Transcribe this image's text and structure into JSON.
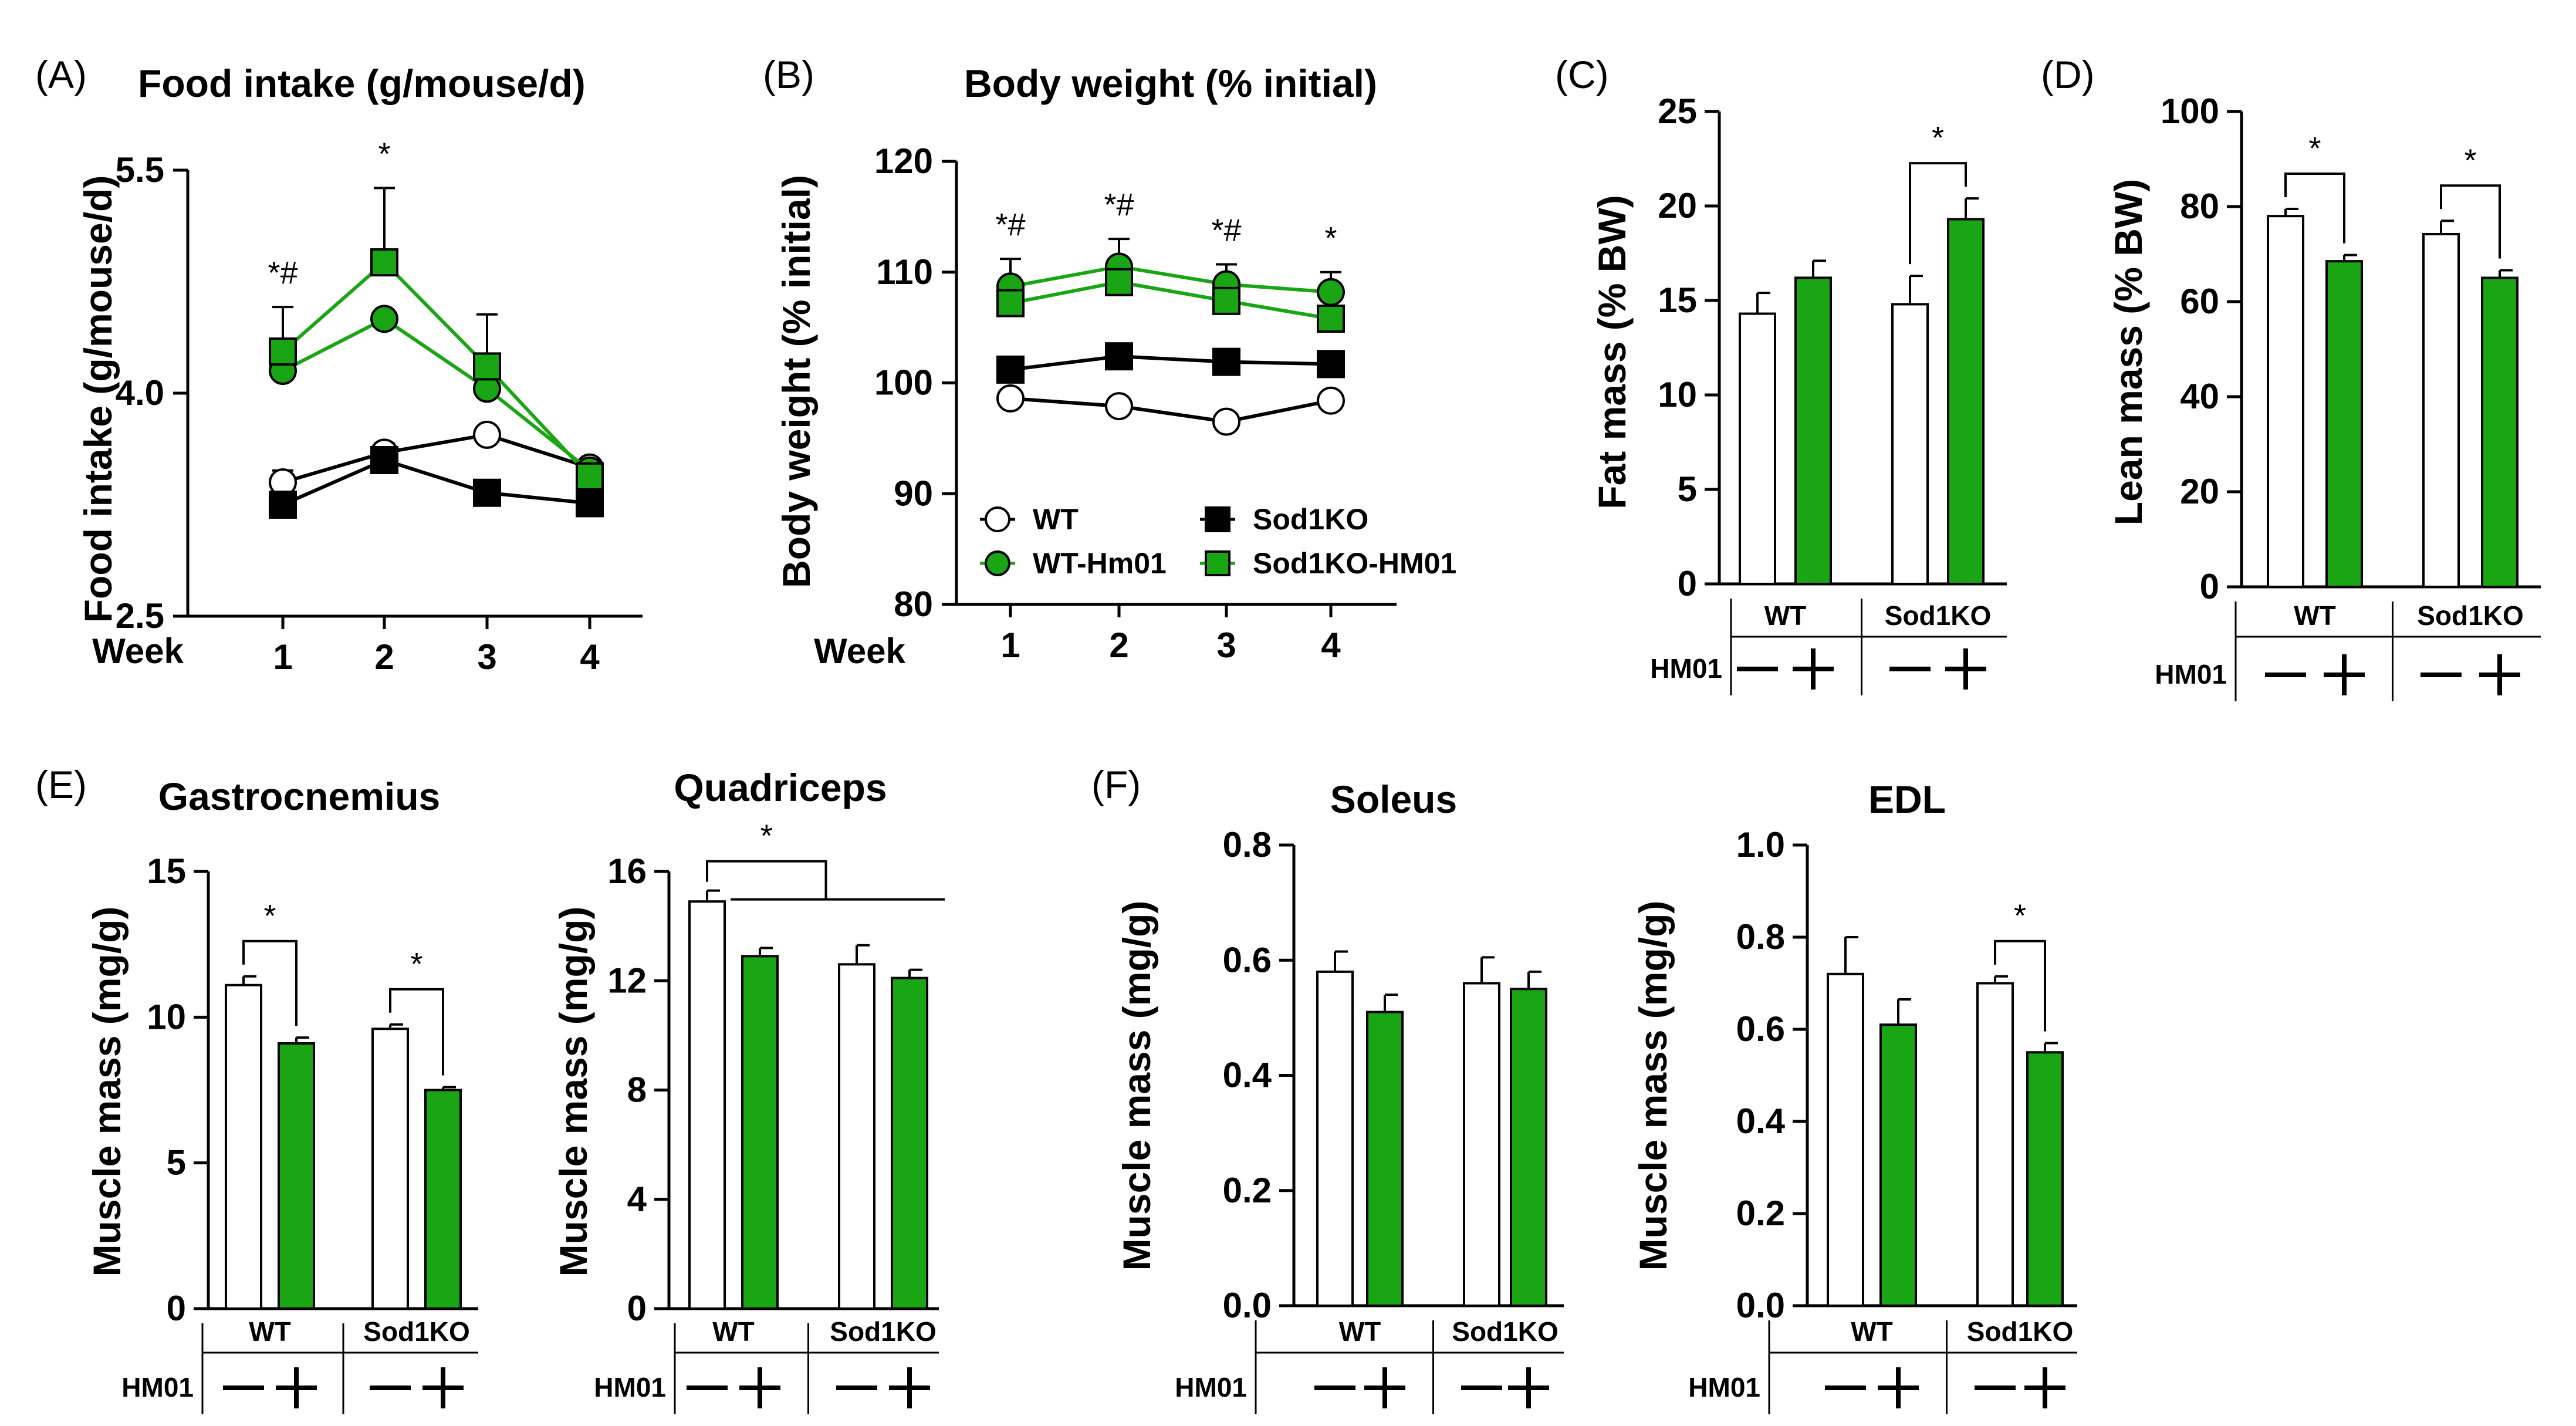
{
  "colors": {
    "green": "#1aa614",
    "black": "#000000",
    "white": "#ffffff"
  },
  "chart_data": [
    {
      "panel": "(A)",
      "type": "line",
      "title": "Food intake (g/mouse/d)",
      "ylabel": "Food intake (g/mouse/d)",
      "xlabel": "Week",
      "categories": [
        "1",
        "2",
        "3",
        "4"
      ],
      "ylim": [
        2.5,
        5.5
      ],
      "yticks": [
        "2.5",
        "4.0",
        "5.5"
      ],
      "series": [
        {
          "name": "WT",
          "marker": "open-circle",
          "values": [
            3.4,
            3.6,
            3.72,
            3.5
          ],
          "err": [
            0.08,
            0.06,
            0.0,
            0.05
          ]
        },
        {
          "name": "Sod1KO",
          "marker": "filled-square",
          "values": [
            3.25,
            3.55,
            3.33,
            3.26
          ],
          "err": [
            0.0,
            0.0,
            0.0,
            0.0
          ]
        },
        {
          "name": "WT-Hm01",
          "marker": "green-circle",
          "values": [
            4.15,
            4.5,
            4.03,
            3.48
          ],
          "err": [
            0.0,
            0.0,
            0.0,
            0.0
          ]
        },
        {
          "name": "Sod1KO-HM01",
          "marker": "green-square",
          "values": [
            4.28,
            4.88,
            4.18,
            3.44
          ],
          "err": [
            0.3,
            0.5,
            0.35,
            0.08
          ]
        }
      ],
      "annotations": [
        "*#",
        "*",
        "",
        ""
      ]
    },
    {
      "panel": "(B)",
      "type": "line",
      "title": "Body weight (% initial)",
      "ylabel": "Body weight (% initial)",
      "xlabel": "Week",
      "categories": [
        "1",
        "2",
        "3",
        "4"
      ],
      "ylim": [
        80,
        120
      ],
      "yticks": [
        "80",
        "90",
        "100",
        "110",
        "120"
      ],
      "series": [
        {
          "name": "WT",
          "marker": "open-circle",
          "values": [
            98.6,
            97.9,
            96.5,
            98.4
          ],
          "err": [
            0,
            0,
            0,
            0
          ]
        },
        {
          "name": "Sod1KO",
          "marker": "filled-square",
          "values": [
            101.2,
            102.4,
            101.9,
            101.7
          ],
          "err": [
            0,
            0,
            0,
            0
          ]
        },
        {
          "name": "WT-Hm01",
          "marker": "green-circle",
          "values": [
            108.7,
            110.5,
            108.9,
            108.2
          ],
          "err": [
            2.5,
            2.5,
            1.8,
            1.8
          ]
        },
        {
          "name": "Sod1KO-HM01",
          "marker": "green-square",
          "values": [
            107.2,
            109.1,
            107.4,
            105.8
          ],
          "err": [
            0,
            0,
            0,
            0
          ]
        }
      ],
      "legend": [
        "WT",
        "Sod1KO",
        "WT-Hm01",
        "Sod1KO-HM01"
      ],
      "annotations": [
        "*#",
        "*#",
        "*#",
        "*"
      ]
    },
    {
      "panel": "(C)",
      "type": "bar",
      "title": "",
      "ylabel": "Fat mass (% BW)",
      "ylim": [
        0,
        25
      ],
      "yticks": [
        "0",
        "5",
        "10",
        "15",
        "20",
        "25"
      ],
      "groups": [
        "WT",
        "Sod1KO"
      ],
      "hm01_label": "HM01",
      "values": [
        14.3,
        16.2,
        14.8,
        19.3
      ],
      "err": [
        1.1,
        0.9,
        1.5,
        1.1
      ],
      "significance": [
        {
          "bars": [
            2,
            3
          ],
          "label": "*"
        }
      ]
    },
    {
      "panel": "(D)",
      "type": "bar",
      "title": "",
      "ylabel": "Lean mass (% BW)",
      "ylim": [
        0,
        100
      ],
      "yticks": [
        "0",
        "20",
        "40",
        "60",
        "80",
        "100"
      ],
      "groups": [
        "WT",
        "Sod1KO"
      ],
      "hm01_label": "HM01",
      "values": [
        78,
        68.5,
        74.2,
        65
      ],
      "err": [
        1.5,
        1.3,
        2.8,
        1.6
      ],
      "significance": [
        {
          "bars": [
            0,
            1
          ],
          "label": "*"
        },
        {
          "bars": [
            2,
            3
          ],
          "label": "*"
        }
      ]
    },
    {
      "panel": "(E)",
      "type": "bar",
      "title": "Gastrocnemius",
      "ylabel": "Muscle mass (mg/g)",
      "ylim": [
        0,
        15
      ],
      "yticks": [
        "0",
        "5",
        "10",
        "15"
      ],
      "groups": [
        "WT",
        "Sod1KO"
      ],
      "hm01_label": "HM01",
      "values": [
        11.1,
        9.1,
        9.6,
        7.5
      ],
      "err": [
        0.3,
        0.2,
        0.15,
        0.1
      ],
      "significance": [
        {
          "bars": [
            0,
            1
          ],
          "label": "*"
        },
        {
          "bars": [
            2,
            3
          ],
          "label": "*"
        }
      ]
    },
    {
      "panel": "",
      "type": "bar",
      "title": "Quadriceps",
      "ylabel": "Muscle mass (mg/g)",
      "ylim": [
        0,
        16
      ],
      "yticks": [
        "0",
        "4",
        "8",
        "12",
        "16"
      ],
      "groups": [
        "WT",
        "Sod1KO"
      ],
      "hm01_label": "HM01",
      "values": [
        14.9,
        12.9,
        12.6,
        12.1
      ],
      "err": [
        0.4,
        0.3,
        0.7,
        0.3
      ],
      "significance": [
        {
          "bars": [
            0,
            1,
            2,
            3
          ],
          "label": "*"
        }
      ]
    },
    {
      "panel": "(F)",
      "type": "bar",
      "title": "Soleus",
      "ylabel": "Muscle mass (mg/g)",
      "ylim": [
        0,
        0.8
      ],
      "yticks": [
        "0.0",
        "0.2",
        "0.4",
        "0.6",
        "0.8"
      ],
      "groups": [
        "WT",
        "Sod1KO"
      ],
      "hm01_label": "HM01",
      "values": [
        0.58,
        0.51,
        0.56,
        0.55
      ],
      "err": [
        0.035,
        0.03,
        0.045,
        0.03
      ],
      "significance": []
    },
    {
      "panel": "",
      "type": "bar",
      "title": "EDL",
      "ylabel": "Muscle mass (mg/g)",
      "ylim": [
        0,
        1.0
      ],
      "yticks": [
        "0.0",
        "0.2",
        "0.4",
        "0.6",
        "0.8",
        "1.0"
      ],
      "groups": [
        "WT",
        "Sod1KO"
      ],
      "hm01_label": "HM01",
      "values": [
        0.72,
        0.61,
        0.7,
        0.55
      ],
      "err": [
        0.08,
        0.055,
        0.015,
        0.02
      ],
      "significance": [
        {
          "bars": [
            2,
            3
          ],
          "label": "*"
        }
      ]
    }
  ]
}
